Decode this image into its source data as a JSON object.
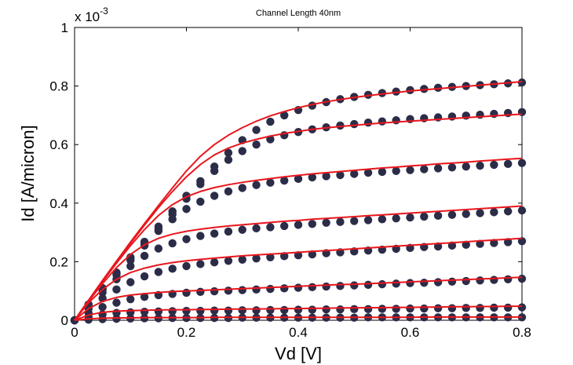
{
  "chart_data": {
    "type": "line",
    "title": "Channel Length 40nm",
    "xlabel": "Vd [V]",
    "ylabel": "Id [A/micron]",
    "y_multiplier_label": "x 10",
    "y_multiplier_exponent": "-3",
    "xlim": [
      0,
      0.8
    ],
    "ylim": [
      0,
      1
    ],
    "y_scale_factor": 0.001,
    "xticks": [
      "0",
      "0.2",
      "0.4",
      "0.6",
      "0.8"
    ],
    "yticks": [
      "0",
      "0.2",
      "0.4",
      "0.6",
      "0.8",
      "1"
    ],
    "grid": false,
    "legend": "none",
    "x": [
      0,
      0.025,
      0.05,
      0.075,
      0.1,
      0.125,
      0.15,
      0.175,
      0.2,
      0.225,
      0.25,
      0.275,
      0.3,
      0.325,
      0.35,
      0.375,
      0.4,
      0.425,
      0.45,
      0.475,
      0.5,
      0.525,
      0.55,
      0.575,
      0.6,
      0.625,
      0.65,
      0.675,
      0.7,
      0.725,
      0.75,
      0.775,
      0.8
    ],
    "series": [
      {
        "role": "measured",
        "style": "markers",
        "color": "#2b2d48",
        "curves": [
          [
            0,
            0.002,
            0.004,
            0.005,
            0.006,
            0.007,
            0.007,
            0.008,
            0.008,
            0.008,
            0.008,
            0.008,
            0.009,
            0.009,
            0.009,
            0.009,
            0.009,
            0.009,
            0.009,
            0.009,
            0.009,
            0.01,
            0.01,
            0.01,
            0.01,
            0.01,
            0.01,
            0.01,
            0.01,
            0.01,
            0.01,
            0.01,
            0.01
          ],
          [
            0,
            0.012,
            0.02,
            0.025,
            0.027,
            0.029,
            0.03,
            0.031,
            0.032,
            0.032,
            0.033,
            0.033,
            0.034,
            0.034,
            0.035,
            0.035,
            0.036,
            0.036,
            0.037,
            0.037,
            0.038,
            0.038,
            0.039,
            0.039,
            0.04,
            0.04,
            0.041,
            0.041,
            0.042,
            0.042,
            0.043,
            0.043,
            0.044
          ],
          [
            0,
            0.025,
            0.045,
            0.06,
            0.072,
            0.08,
            0.086,
            0.09,
            0.094,
            0.097,
            0.099,
            0.101,
            0.103,
            0.105,
            0.107,
            0.109,
            0.111,
            0.113,
            0.115,
            0.117,
            0.119,
            0.121,
            0.123,
            0.125,
            0.127,
            0.128,
            0.13,
            0.132,
            0.134,
            0.136,
            0.138,
            0.14,
            0.142
          ],
          [
            0,
            0.04,
            0.075,
            0.105,
            0.13,
            0.15,
            0.165,
            0.176,
            0.185,
            0.192,
            0.198,
            0.203,
            0.207,
            0.211,
            0.215,
            0.219,
            0.222,
            0.225,
            0.229,
            0.232,
            0.235,
            0.238,
            0.241,
            0.244,
            0.247,
            0.25,
            0.252,
            0.255,
            0.258,
            0.261,
            0.264,
            0.267,
            0.27
          ],
          [
            0,
            0.048,
            0.095,
            0.14,
            0.185,
            0.22,
            0.245,
            0.263,
            0.277,
            0.288,
            0.296,
            0.303,
            0.309,
            0.314,
            0.318,
            0.322,
            0.326,
            0.329,
            0.333,
            0.336,
            0.339,
            0.342,
            0.345,
            0.348,
            0.351,
            0.354,
            0.357,
            0.36,
            0.363,
            0.366,
            0.369,
            0.372,
            0.375
          ],
          [
            0,
            0.052,
            0.105,
            0.155,
            0.205,
            0.255,
            0.305,
            0.345,
            0.38,
            0.405,
            0.425,
            0.44,
            0.452,
            0.462,
            0.47,
            0.477,
            0.483,
            0.488,
            0.492,
            0.496,
            0.5,
            0.504,
            0.507,
            0.51,
            0.513,
            0.516,
            0.519,
            0.522,
            0.525,
            0.528,
            0.531,
            0.534,
            0.537
          ],
          [
            0,
            0.053,
            0.108,
            0.16,
            0.21,
            0.262,
            0.312,
            0.362,
            0.415,
            0.465,
            0.51,
            0.548,
            0.578,
            0.6,
            0.618,
            0.632,
            0.643,
            0.652,
            0.659,
            0.665,
            0.67,
            0.675,
            0.679,
            0.683,
            0.687,
            0.69,
            0.693,
            0.696,
            0.699,
            0.702,
            0.705,
            0.708,
            0.711
          ],
          [
            0,
            0.054,
            0.11,
            0.163,
            0.215,
            0.268,
            0.32,
            0.372,
            0.425,
            0.475,
            0.525,
            0.572,
            0.615,
            0.65,
            0.678,
            0.7,
            0.718,
            0.733,
            0.745,
            0.755,
            0.763,
            0.77,
            0.776,
            0.781,
            0.786,
            0.79,
            0.794,
            0.797,
            0.8,
            0.803,
            0.806,
            0.809,
            0.812
          ]
        ]
      },
      {
        "role": "model",
        "style": "line",
        "color": "#e8161d",
        "curves": [
          [
            0,
            0.005,
            0.007,
            0.008,
            0.008,
            0.009,
            0.009,
            0.009,
            0.009,
            0.009,
            0.01,
            0.01,
            0.01,
            0.01,
            0.01,
            0.01,
            0.01,
            0.01,
            0.01,
            0.01,
            0.01,
            0.01,
            0.01,
            0.01,
            0.01,
            0.011,
            0.011,
            0.011,
            0.011,
            0.011,
            0.011,
            0.011,
            0.011
          ],
          [
            0,
            0.018,
            0.027,
            0.031,
            0.033,
            0.034,
            0.035,
            0.036,
            0.036,
            0.037,
            0.037,
            0.038,
            0.038,
            0.039,
            0.039,
            0.04,
            0.04,
            0.041,
            0.041,
            0.042,
            0.042,
            0.043,
            0.043,
            0.044,
            0.044,
            0.045,
            0.045,
            0.046,
            0.046,
            0.047,
            0.047,
            0.048,
            0.048
          ],
          [
            0,
            0.04,
            0.064,
            0.078,
            0.086,
            0.091,
            0.095,
            0.098,
            0.1,
            0.102,
            0.104,
            0.106,
            0.108,
            0.11,
            0.112,
            0.114,
            0.116,
            0.118,
            0.12,
            0.122,
            0.123,
            0.125,
            0.127,
            0.129,
            0.131,
            0.133,
            0.135,
            0.137,
            0.139,
            0.141,
            0.143,
            0.145,
            0.147
          ],
          [
            0,
            0.06,
            0.105,
            0.14,
            0.163,
            0.178,
            0.189,
            0.197,
            0.203,
            0.208,
            0.212,
            0.216,
            0.22,
            0.223,
            0.226,
            0.229,
            0.232,
            0.235,
            0.238,
            0.241,
            0.244,
            0.247,
            0.25,
            0.253,
            0.256,
            0.259,
            0.262,
            0.265,
            0.268,
            0.271,
            0.274,
            0.277,
            0.28
          ],
          [
            0,
            0.065,
            0.125,
            0.18,
            0.225,
            0.258,
            0.28,
            0.294,
            0.304,
            0.311,
            0.317,
            0.322,
            0.326,
            0.33,
            0.334,
            0.338,
            0.341,
            0.345,
            0.348,
            0.351,
            0.354,
            0.357,
            0.36,
            0.363,
            0.366,
            0.369,
            0.372,
            0.375,
            0.378,
            0.381,
            0.384,
            0.387,
            0.39
          ],
          [
            0,
            0.067,
            0.132,
            0.195,
            0.255,
            0.31,
            0.358,
            0.395,
            0.422,
            0.44,
            0.453,
            0.463,
            0.471,
            0.478,
            0.484,
            0.49,
            0.495,
            0.5,
            0.504,
            0.508,
            0.512,
            0.516,
            0.52,
            0.523,
            0.527,
            0.53,
            0.534,
            0.537,
            0.54,
            0.544,
            0.547,
            0.55,
            0.553
          ],
          [
            0,
            0.068,
            0.135,
            0.2,
            0.263,
            0.325,
            0.385,
            0.44,
            0.49,
            0.532,
            0.565,
            0.588,
            0.605,
            0.618,
            0.629,
            0.638,
            0.645,
            0.652,
            0.657,
            0.662,
            0.666,
            0.67,
            0.674,
            0.677,
            0.68,
            0.683,
            0.686,
            0.689,
            0.692,
            0.695,
            0.698,
            0.701,
            0.704
          ],
          [
            0,
            0.068,
            0.136,
            0.202,
            0.267,
            0.33,
            0.392,
            0.452,
            0.51,
            0.56,
            0.6,
            0.632,
            0.658,
            0.68,
            0.698,
            0.713,
            0.726,
            0.737,
            0.746,
            0.754,
            0.761,
            0.767,
            0.773,
            0.778,
            0.783,
            0.787,
            0.791,
            0.795,
            0.799,
            0.803,
            0.807,
            0.811,
            0.815
          ]
        ]
      }
    ]
  }
}
